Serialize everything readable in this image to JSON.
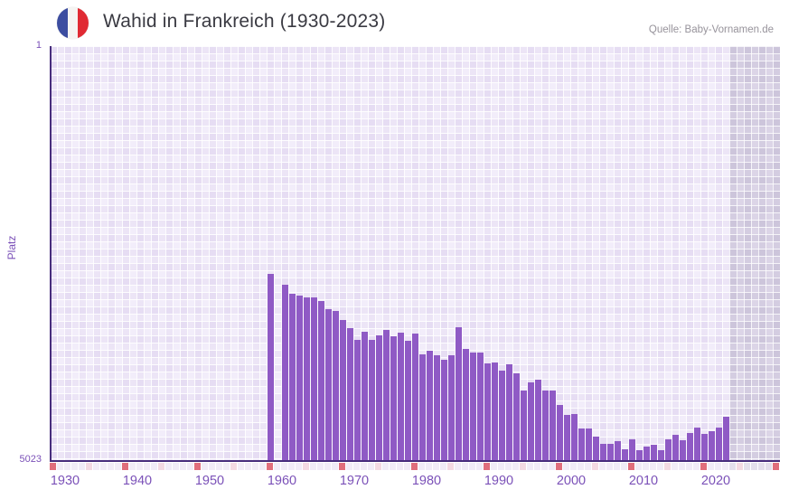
{
  "header": {
    "title": "Wahid in Frankreich (1930-2023)",
    "source": "Quelle: Baby-Vornamen.de",
    "flag_icon": "france-flag-icon"
  },
  "chart_data": {
    "type": "bar",
    "title": "Wahid in Frankreich (1930-2023)",
    "name": "Wahid",
    "country": "Frankreich",
    "ylabel": "Platz",
    "y_axis": {
      "top_label": "1",
      "bottom_label": "5023",
      "min": 1,
      "max": 5023,
      "inverted": true
    },
    "x_axis": {
      "start_year": 1930,
      "end_year": 2030,
      "data_start_year": 1930,
      "data_end_year": 2023,
      "tick_labels": [
        "1930",
        "1940",
        "1950",
        "1960",
        "1970",
        "1980",
        "1990",
        "2000",
        "2010",
        "2020"
      ],
      "shaded_future_from": 2024,
      "decade_marker_step": 10,
      "half_decade_marker_step": 5
    },
    "legend": "none",
    "grid": "on",
    "points": [
      [
        1960,
        2767
      ],
      [
        1962,
        2898
      ],
      [
        1963,
        3008
      ],
      [
        1964,
        3030
      ],
      [
        1965,
        3055
      ],
      [
        1966,
        3052
      ],
      [
        1967,
        3103
      ],
      [
        1968,
        3198
      ],
      [
        1969,
        3220
      ],
      [
        1970,
        3330
      ],
      [
        1971,
        3432
      ],
      [
        1972,
        3569
      ],
      [
        1973,
        3476
      ],
      [
        1974,
        3569
      ],
      [
        1975,
        3514
      ],
      [
        1976,
        3452
      ],
      [
        1977,
        3529
      ],
      [
        1978,
        3488
      ],
      [
        1979,
        3580
      ],
      [
        1980,
        3499
      ],
      [
        1981,
        3745
      ],
      [
        1982,
        3701
      ],
      [
        1983,
        3763
      ],
      [
        1984,
        3818
      ],
      [
        1985,
        3763
      ],
      [
        1986,
        3415
      ],
      [
        1987,
        3682
      ],
      [
        1988,
        3726
      ],
      [
        1989,
        3726
      ],
      [
        1990,
        3855
      ],
      [
        1991,
        3847
      ],
      [
        1992,
        3946
      ],
      [
        1993,
        3866
      ],
      [
        1994,
        3982
      ],
      [
        1995,
        4184
      ],
      [
        1996,
        4085
      ],
      [
        1997,
        4056
      ],
      [
        1998,
        4184
      ],
      [
        1999,
        4191
      ],
      [
        2000,
        4367
      ],
      [
        2001,
        4484
      ],
      [
        2002,
        4477
      ],
      [
        2003,
        4653
      ],
      [
        2004,
        4649
      ],
      [
        2005,
        4748
      ],
      [
        2006,
        4836
      ],
      [
        2007,
        4841
      ],
      [
        2008,
        4808
      ],
      [
        2009,
        4902
      ],
      [
        2010,
        4786
      ],
      [
        2011,
        4916
      ],
      [
        2012,
        4869
      ],
      [
        2013,
        4843
      ],
      [
        2014,
        4916
      ],
      [
        2015,
        4781
      ],
      [
        2016,
        4723
      ],
      [
        2017,
        4795
      ],
      [
        2018,
        4707
      ],
      [
        2019,
        4635
      ],
      [
        2020,
        4715
      ],
      [
        2021,
        4679
      ],
      [
        2022,
        4635
      ],
      [
        2023,
        4506
      ]
    ],
    "missing_years": [
      1961
    ],
    "colors": {
      "bar": "#8f5ac5",
      "axis_line": "#472d7c",
      "axis_label": "#7b51b8",
      "decade_marker": "#e06e7c",
      "half_decade_marker": "#f3d9e2",
      "strip_cell": "#f1ecf7",
      "strip_cell_future": "#e4dfec",
      "title_text": "#3a3a42",
      "source_text": "#97939b"
    }
  }
}
